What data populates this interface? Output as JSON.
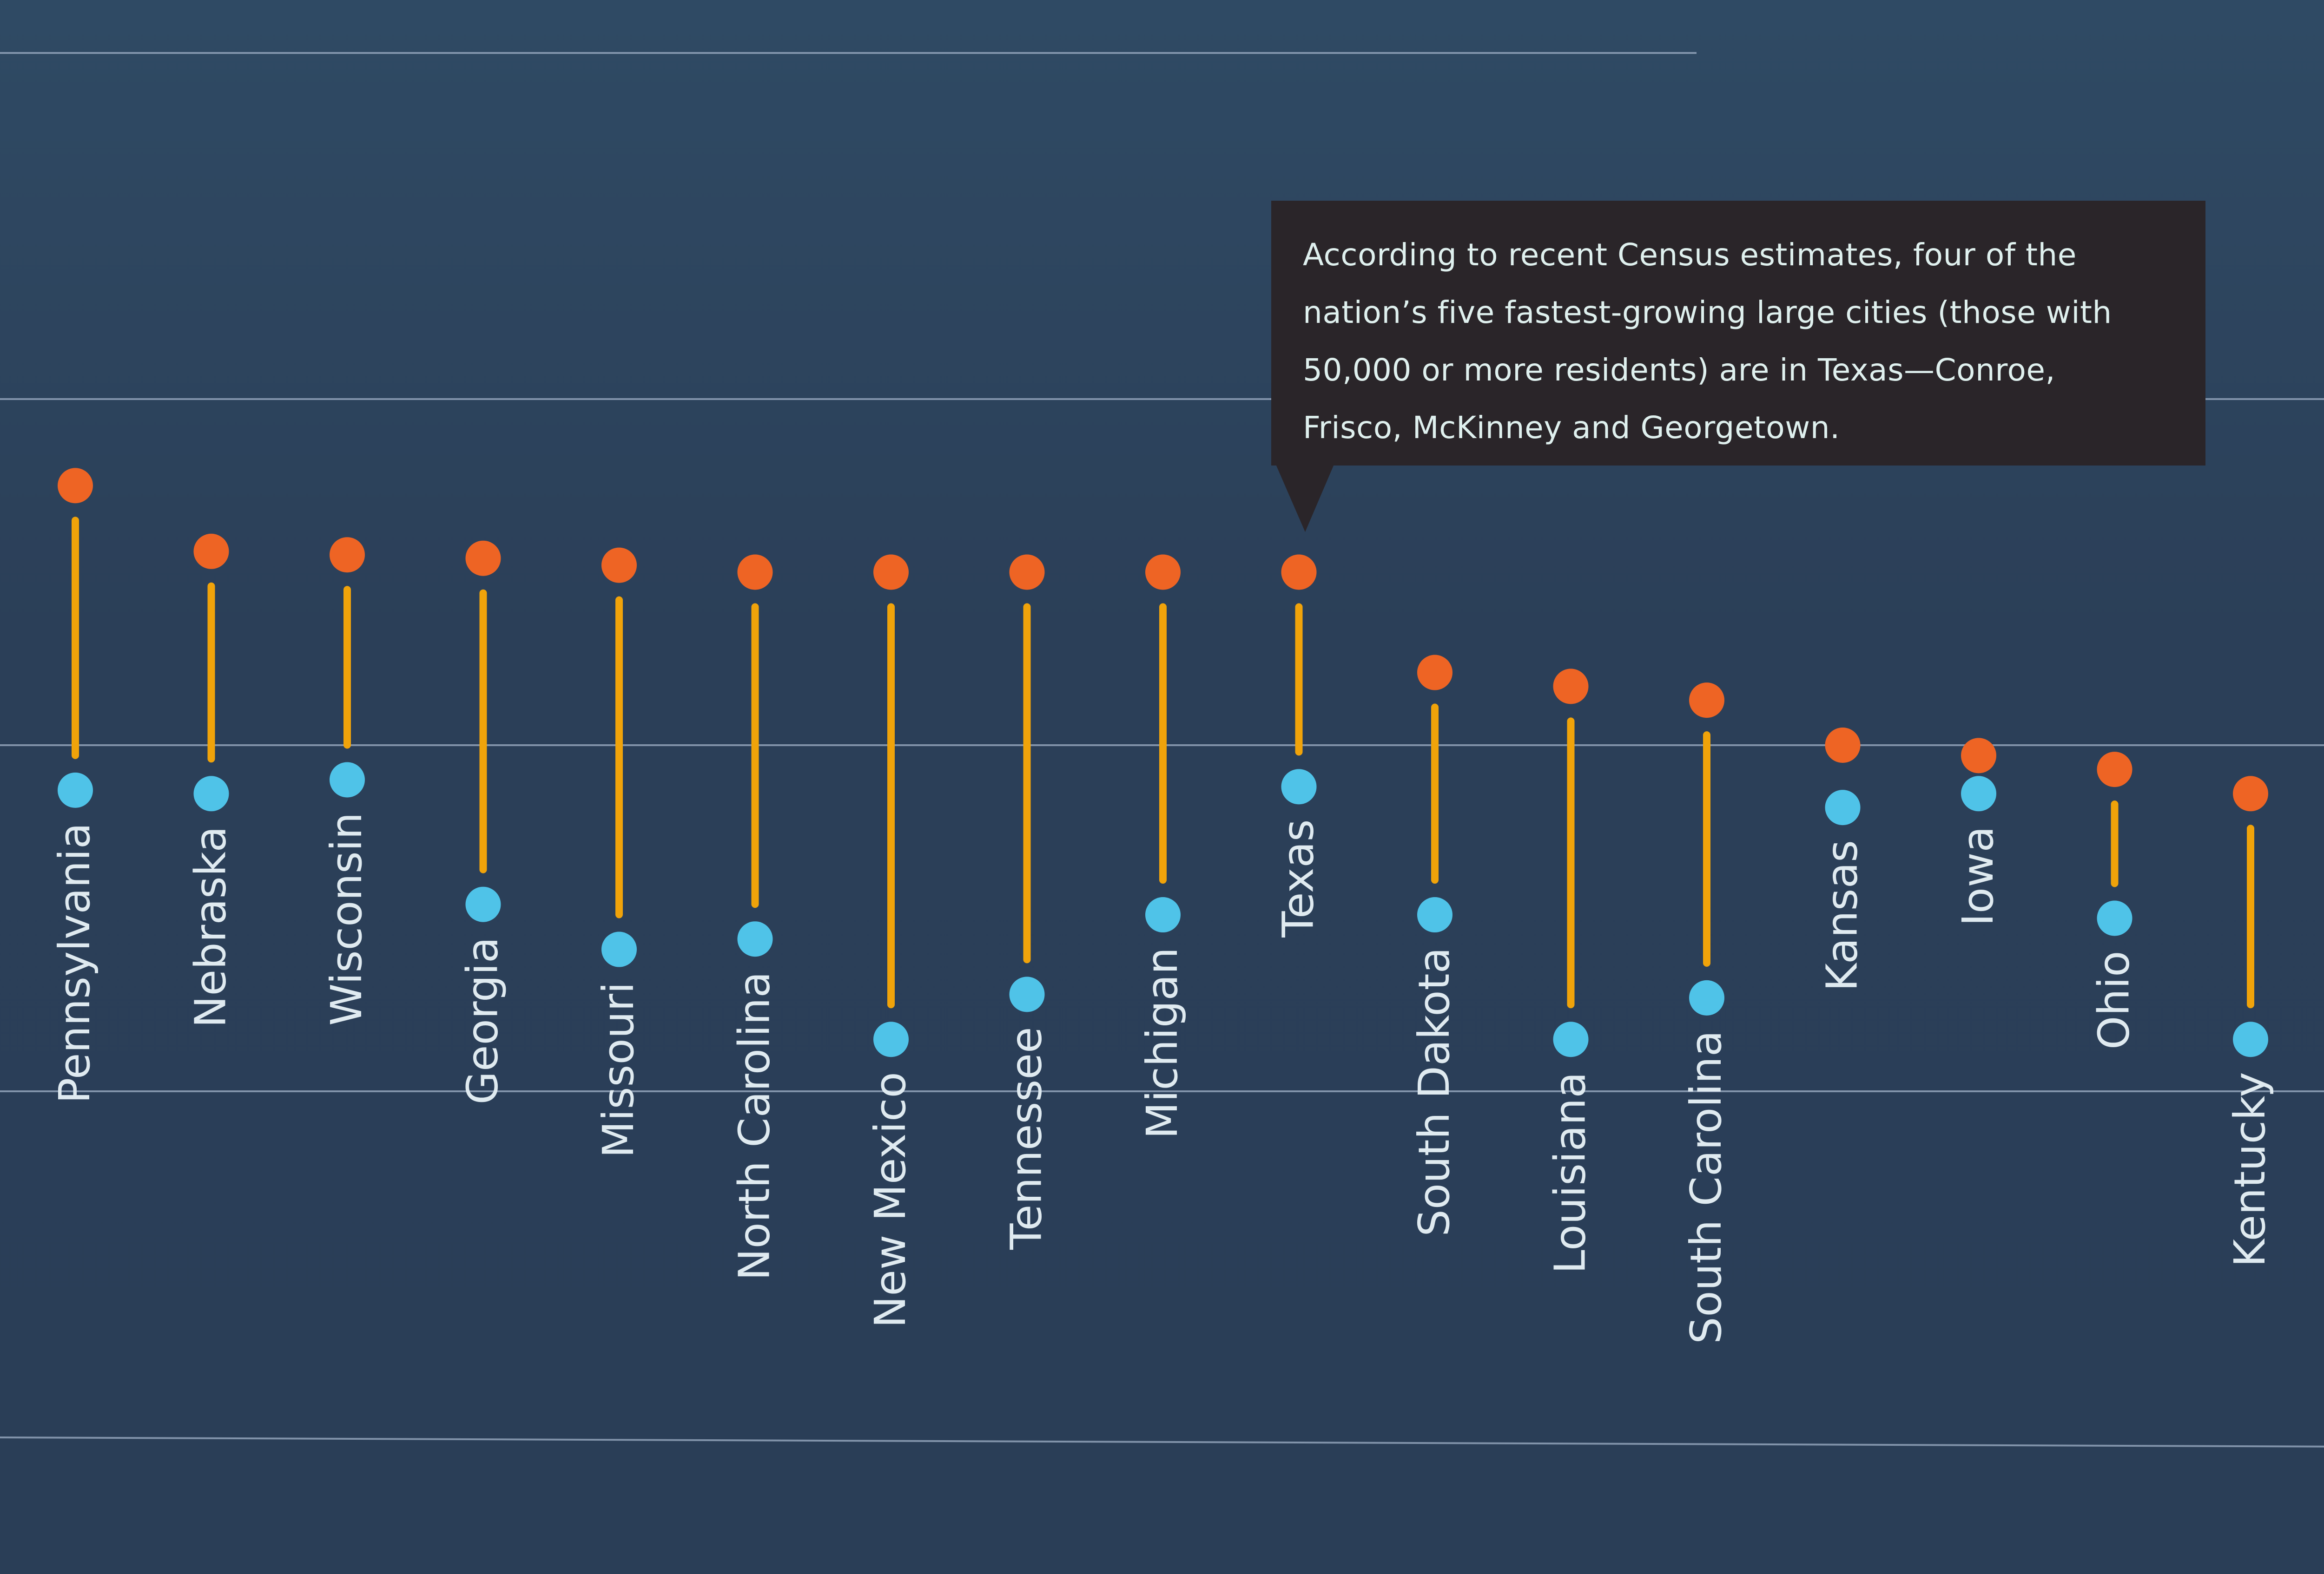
{
  "chart_data": {
    "type": "dumbbell",
    "title": "",
    "xlabel": "",
    "ylabel": "",
    "grid": true,
    "gridlines": [
      2,
      1,
      0,
      -1,
      -2
    ],
    "ylim": [
      -2.1,
      2.1
    ],
    "categories": [
      "Pennsylvania",
      "Nebraska",
      "Wisconsin",
      "Georgia",
      "Missouri",
      "North Carolina",
      "New Mexico",
      "Tennessee",
      "Michigan",
      "Texas",
      "South Dakota",
      "Louisiana",
      "South Carolina",
      "Kansas",
      "Iowa",
      "Ohio",
      "Kentucky"
    ],
    "series": [
      {
        "name": "orange",
        "color": "#ee6424",
        "values": [
          0.75,
          0.56,
          0.55,
          0.54,
          0.52,
          0.5,
          0.5,
          0.5,
          0.5,
          0.5,
          0.21,
          0.17,
          0.13,
          0.0,
          -0.03,
          -0.07,
          -0.14
        ]
      },
      {
        "name": "blue",
        "color": "#4fc3e8",
        "values": [
          -0.13,
          -0.14,
          -0.1,
          -0.46,
          -0.59,
          -0.56,
          -0.85,
          -0.72,
          -0.49,
          -0.12,
          -0.49,
          -0.85,
          -0.73,
          -0.18,
          -0.14,
          -0.5,
          -0.85
        ]
      }
    ],
    "connector_color": "#f0a30a",
    "annotation": {
      "target": "Texas",
      "lines": [
        "According to recent Census estimates, four of the",
        "nation’s five fastest-growing large cities (those with",
        "50,000 or more residents) are in Texas—Conroe,",
        "Frisco, McKinney and Georgetown."
      ]
    }
  }
}
